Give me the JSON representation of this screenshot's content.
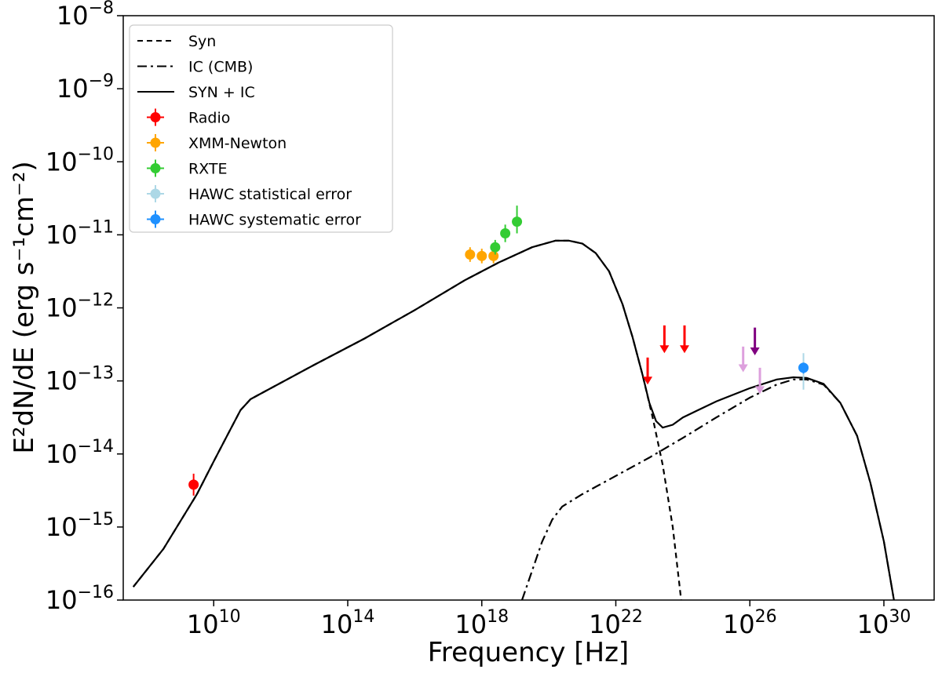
{
  "chart_data": {
    "type": "line",
    "title": "",
    "xlabel": "Frequency [Hz]",
    "ylabel": "E²dN/dE (erg s⁻¹cm⁻²)",
    "xscale": "log",
    "yscale": "log",
    "xlim_log10": [
      7.3,
      31.5
    ],
    "ylim_log10": [
      -16,
      -8
    ],
    "x_ticks_log10": [
      10,
      14,
      18,
      22,
      26,
      30
    ],
    "y_ticks_log10": [
      -8,
      -9,
      -10,
      -11,
      -12,
      -13,
      -14,
      -15,
      -16
    ],
    "tick_base": "10",
    "legend_position": "top-left",
    "model_curves": [
      {
        "name": "Syn",
        "style": "dashed",
        "points_log10": [
          [
            7.6,
            -15.82
          ],
          [
            8.5,
            -15.3
          ],
          [
            9.5,
            -14.55
          ],
          [
            10.0,
            -14.1
          ],
          [
            10.4,
            -13.75
          ],
          [
            10.8,
            -13.4
          ],
          [
            11.1,
            -13.25
          ],
          [
            11.5,
            -13.15
          ],
          [
            13.0,
            -12.78
          ],
          [
            14.5,
            -12.42
          ],
          [
            16.0,
            -12.03
          ],
          [
            17.5,
            -11.62
          ],
          [
            18.5,
            -11.38
          ],
          [
            19.5,
            -11.17
          ],
          [
            20.2,
            -11.08
          ],
          [
            20.6,
            -11.08
          ],
          [
            21.0,
            -11.12
          ],
          [
            21.4,
            -11.25
          ],
          [
            21.8,
            -11.5
          ],
          [
            22.2,
            -11.95
          ],
          [
            22.5,
            -12.4
          ],
          [
            22.8,
            -12.92
          ],
          [
            23.1,
            -13.5
          ],
          [
            23.4,
            -14.15
          ],
          [
            23.7,
            -15.0
          ],
          [
            23.9,
            -15.8
          ],
          [
            23.95,
            -16.0
          ]
        ]
      },
      {
        "name": "IC (CMB)",
        "style": "dashdot",
        "points_log10": [
          [
            19.2,
            -16.0
          ],
          [
            19.5,
            -15.6
          ],
          [
            19.8,
            -15.2
          ],
          [
            20.1,
            -14.9
          ],
          [
            20.4,
            -14.72
          ],
          [
            21.0,
            -14.55
          ],
          [
            22.0,
            -14.3
          ],
          [
            23.0,
            -14.05
          ],
          [
            24.0,
            -13.78
          ],
          [
            25.0,
            -13.5
          ],
          [
            26.0,
            -13.23
          ],
          [
            26.8,
            -13.05
          ],
          [
            27.3,
            -12.98
          ],
          [
            27.7,
            -12.98
          ],
          [
            28.2,
            -13.05
          ],
          [
            28.7,
            -13.3
          ],
          [
            29.2,
            -13.75
          ],
          [
            29.6,
            -14.4
          ],
          [
            30.0,
            -15.2
          ],
          [
            30.3,
            -16.0
          ]
        ]
      },
      {
        "name": "SYN + IC",
        "style": "solid",
        "points_log10": [
          [
            7.6,
            -15.82
          ],
          [
            8.5,
            -15.3
          ],
          [
            9.5,
            -14.55
          ],
          [
            10.0,
            -14.1
          ],
          [
            10.4,
            -13.75
          ],
          [
            10.8,
            -13.4
          ],
          [
            11.1,
            -13.25
          ],
          [
            11.5,
            -13.15
          ],
          [
            13.0,
            -12.78
          ],
          [
            14.5,
            -12.42
          ],
          [
            16.0,
            -12.03
          ],
          [
            17.5,
            -11.62
          ],
          [
            18.5,
            -11.38
          ],
          [
            19.5,
            -11.17
          ],
          [
            20.2,
            -11.08
          ],
          [
            20.6,
            -11.08
          ],
          [
            21.0,
            -11.12
          ],
          [
            21.4,
            -11.25
          ],
          [
            21.8,
            -11.5
          ],
          [
            22.2,
            -11.95
          ],
          [
            22.5,
            -12.4
          ],
          [
            22.8,
            -12.92
          ],
          [
            23.0,
            -13.3
          ],
          [
            23.2,
            -13.55
          ],
          [
            23.4,
            -13.64
          ],
          [
            23.7,
            -13.6
          ],
          [
            24.0,
            -13.5
          ],
          [
            25.0,
            -13.28
          ],
          [
            26.0,
            -13.1
          ],
          [
            26.8,
            -12.98
          ],
          [
            27.3,
            -12.95
          ],
          [
            27.7,
            -12.96
          ],
          [
            28.2,
            -13.04
          ],
          [
            28.7,
            -13.3
          ],
          [
            29.2,
            -13.75
          ],
          [
            29.6,
            -14.4
          ],
          [
            30.0,
            -15.2
          ],
          [
            30.3,
            -16.0
          ]
        ]
      }
    ],
    "data_series": [
      {
        "name": "Radio",
        "color": "#ff0000",
        "points_log10": [
          {
            "x": 9.4,
            "y": -14.42,
            "y_low": -14.57,
            "y_high": -14.27
          }
        ]
      },
      {
        "name": "XMM-Newton",
        "color": "#ffa500",
        "points_log10": [
          {
            "x": 17.65,
            "y": -11.27,
            "y_low": -11.37,
            "y_high": -11.17
          },
          {
            "x": 18.0,
            "y": -11.29,
            "y_low": -11.39,
            "y_high": -11.19
          },
          {
            "x": 18.35,
            "y": -11.29,
            "y_low": -11.39,
            "y_high": -11.19
          }
        ]
      },
      {
        "name": "RXTE",
        "color": "#33cc33",
        "points_log10": [
          {
            "x": 18.4,
            "y": -11.17,
            "y_low": -11.27,
            "y_high": -11.07
          },
          {
            "x": 18.7,
            "y": -10.98,
            "y_low": -11.1,
            "y_high": -10.86
          },
          {
            "x": 19.05,
            "y": -10.82,
            "y_low": -10.98,
            "y_high": -10.6
          }
        ]
      },
      {
        "name": "HAWC statistical error",
        "color": "#add8e6",
        "points_log10": [
          {
            "x": 27.6,
            "y": -12.82,
            "y_low": -13.12,
            "y_high": -12.62
          }
        ]
      },
      {
        "name": "HAWC systematic error",
        "color": "#1e90ff",
        "points_log10": [
          {
            "x": 27.6,
            "y": -12.82,
            "y_low": -12.9,
            "y_high": -12.75
          }
        ]
      }
    ],
    "upper_limits": [
      {
        "color": "#ff0000",
        "x": 22.95,
        "y_top": -12.68,
        "y_bottom": -13.05
      },
      {
        "color": "#ff0000",
        "x": 23.45,
        "y_top": -12.24,
        "y_bottom": -12.62
      },
      {
        "color": "#ff0000",
        "x": 24.05,
        "y_top": -12.24,
        "y_bottom": -12.62
      },
      {
        "color": "#dda0dd",
        "x": 25.8,
        "y_top": -12.53,
        "y_bottom": -12.88
      },
      {
        "color": "#800080",
        "x": 26.15,
        "y_top": -12.27,
        "y_bottom": -12.65
      },
      {
        "color": "#dda0dd",
        "x": 26.3,
        "y_top": -12.82,
        "y_bottom": -13.18
      }
    ],
    "legend": [
      {
        "label": "Syn",
        "kind": "line",
        "style": "dashed",
        "color": "#000000"
      },
      {
        "label": "IC (CMB)",
        "kind": "line",
        "style": "dashdot",
        "color": "#000000"
      },
      {
        "label": "SYN + IC",
        "kind": "line",
        "style": "solid",
        "color": "#000000"
      },
      {
        "label": "Radio",
        "kind": "marker",
        "color": "#ff0000"
      },
      {
        "label": "XMM-Newton",
        "kind": "marker",
        "color": "#ffa500"
      },
      {
        "label": "RXTE",
        "kind": "marker",
        "color": "#33cc33"
      },
      {
        "label": "HAWC statistical error",
        "kind": "marker",
        "color": "#add8e6"
      },
      {
        "label": "HAWC systematic error",
        "kind": "marker",
        "color": "#1e90ff"
      }
    ]
  }
}
